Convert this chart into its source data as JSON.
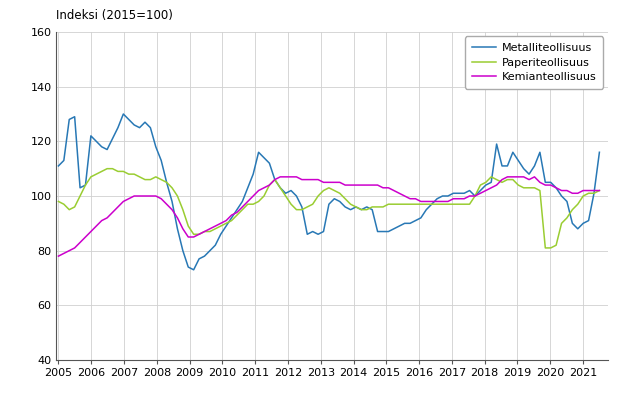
{
  "title": "Indeksi (2015=100)",
  "ylim": [
    40,
    160
  ],
  "yticks": [
    40,
    60,
    80,
    100,
    120,
    140,
    160
  ],
  "xlim_start": 2004.92,
  "xlim_end": 2021.75,
  "line_colors": [
    "#2878b5",
    "#9acd32",
    "#cc00cc"
  ],
  "legend_labels": [
    "Metalliteollisuus",
    "Paperiteollisuus",
    "Kemianteollisuus"
  ],
  "metalliteollisuus": [
    111,
    113,
    128,
    129,
    103,
    104,
    122,
    120,
    118,
    117,
    121,
    125,
    130,
    128,
    126,
    125,
    127,
    125,
    118,
    113,
    105,
    98,
    88,
    80,
    74,
    73,
    77,
    78,
    80,
    82,
    86,
    89,
    92,
    95,
    98,
    103,
    108,
    116,
    114,
    112,
    106,
    103,
    101,
    102,
    100,
    96,
    86,
    87,
    86,
    87,
    97,
    99,
    98,
    96,
    95,
    96,
    95,
    96,
    95,
    87,
    87,
    87,
    88,
    89,
    90,
    90,
    91,
    92,
    95,
    97,
    99,
    100,
    100,
    101,
    101,
    101,
    102,
    100,
    102,
    104,
    105,
    119,
    111,
    111,
    116,
    113,
    110,
    108,
    111,
    116,
    105,
    105,
    103,
    100,
    98,
    90,
    88,
    90,
    91,
    101,
    116
  ],
  "paperiteollisuus": [
    98,
    97,
    95,
    96,
    100,
    104,
    107,
    108,
    109,
    110,
    110,
    109,
    109,
    108,
    108,
    107,
    106,
    106,
    107,
    106,
    105,
    103,
    100,
    95,
    89,
    86,
    86,
    87,
    87,
    88,
    89,
    90,
    91,
    93,
    95,
    97,
    97,
    98,
    100,
    104,
    106,
    103,
    100,
    97,
    95,
    95,
    96,
    97,
    100,
    102,
    103,
    102,
    101,
    99,
    97,
    96,
    95,
    95,
    96,
    96,
    96,
    97,
    97,
    97,
    97,
    97,
    97,
    97,
    97,
    97,
    97,
    97,
    97,
    97,
    97,
    97,
    97,
    100,
    104,
    105,
    107,
    106,
    105,
    106,
    106,
    104,
    103,
    103,
    103,
    102,
    81,
    81,
    82,
    90,
    92,
    95,
    97,
    100,
    101,
    101,
    102
  ],
  "kemianteollisuus": [
    78,
    79,
    80,
    81,
    83,
    85,
    87,
    89,
    91,
    92,
    94,
    96,
    98,
    99,
    100,
    100,
    100,
    100,
    100,
    99,
    97,
    95,
    92,
    88,
    85,
    85,
    86,
    87,
    88,
    89,
    90,
    91,
    93,
    94,
    96,
    98,
    100,
    102,
    103,
    104,
    106,
    107,
    107,
    107,
    107,
    106,
    106,
    106,
    106,
    105,
    105,
    105,
    105,
    104,
    104,
    104,
    104,
    104,
    104,
    104,
    103,
    103,
    102,
    101,
    100,
    99,
    99,
    98,
    98,
    98,
    98,
    98,
    98,
    99,
    99,
    99,
    100,
    100,
    101,
    102,
    103,
    104,
    106,
    107,
    107,
    107,
    107,
    106,
    107,
    105,
    104,
    104,
    103,
    102,
    102,
    101,
    101,
    102,
    102,
    102,
    102
  ],
  "xtick_years": [
    2005,
    2006,
    2007,
    2008,
    2009,
    2010,
    2011,
    2012,
    2013,
    2014,
    2015,
    2016,
    2017,
    2018,
    2019,
    2020,
    2021
  ]
}
